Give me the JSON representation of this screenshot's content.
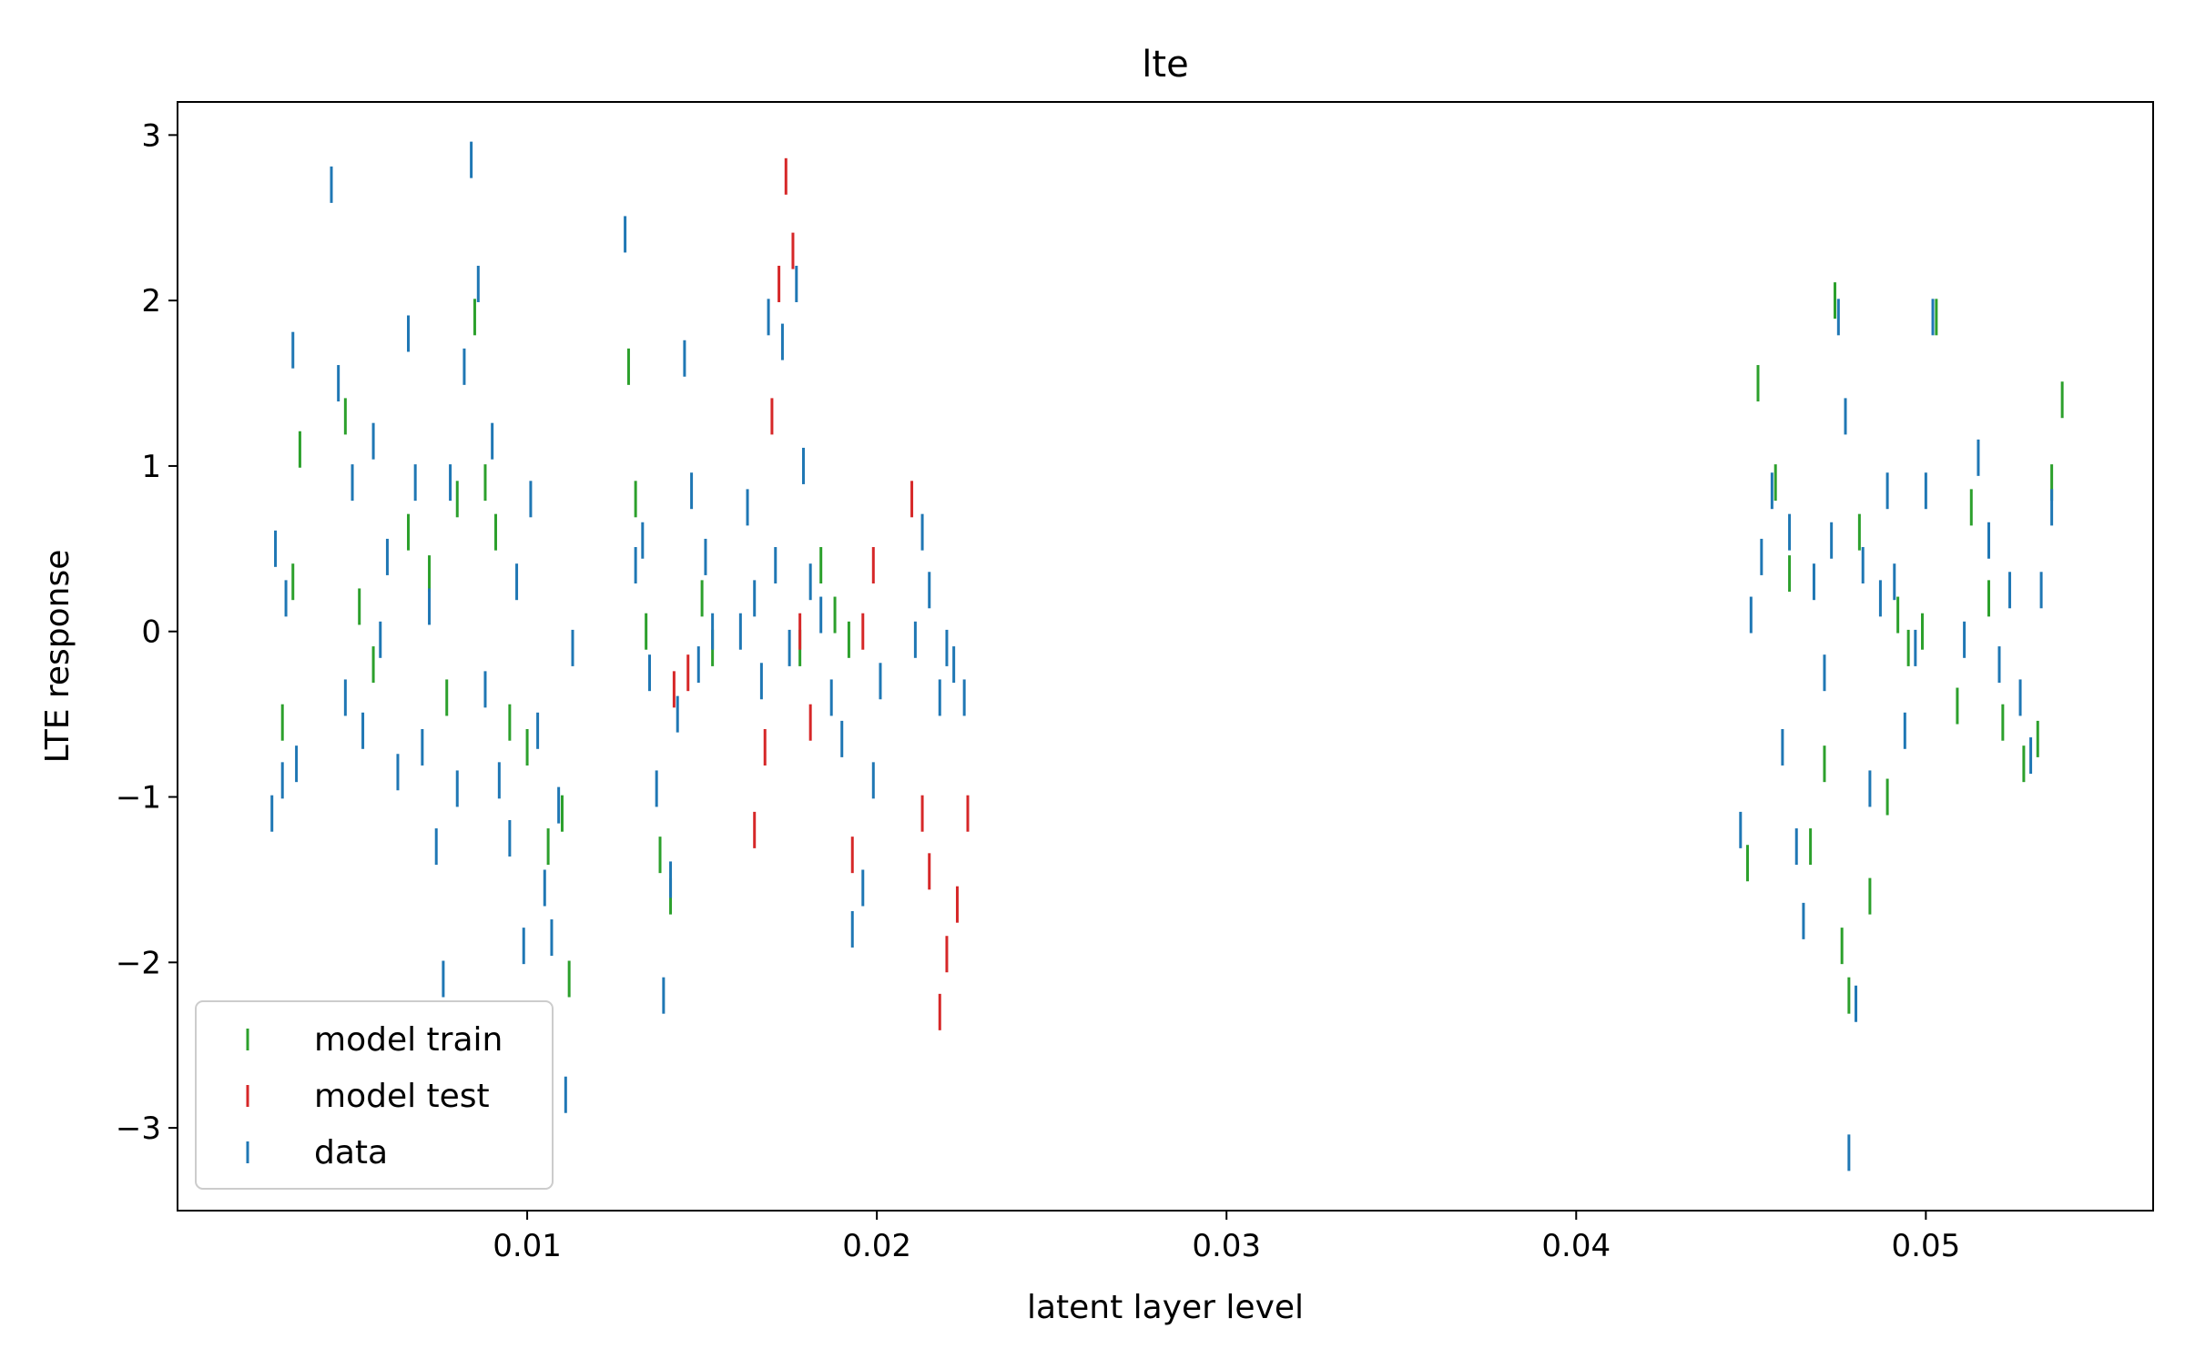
{
  "chart_data": {
    "type": "scatter",
    "title": "lte",
    "xlabel": "latent layer level",
    "ylabel": "LTE response",
    "xlim": [
      0.0,
      0.0565
    ],
    "ylim": [
      -3.5,
      3.2
    ],
    "x_ticks": [
      0.01,
      0.02,
      0.03,
      0.04,
      0.05
    ],
    "x_tick_labels": [
      "0.01",
      "0.02",
      "0.03",
      "0.04",
      "0.05"
    ],
    "y_ticks": [
      -3,
      -2,
      -1,
      0,
      1,
      2,
      3
    ],
    "y_tick_labels": [
      "−3",
      "−2",
      "−1",
      "0",
      "1",
      "2",
      "3"
    ],
    "marker": "vertical-line",
    "grid": false,
    "legend_position": "lower-left",
    "series": [
      {
        "name": "model train",
        "color": "#2ca02c",
        "points": [
          [
            0.003,
            -0.55
          ],
          [
            0.0033,
            0.3
          ],
          [
            0.0035,
            1.1
          ],
          [
            0.0048,
            1.3
          ],
          [
            0.0052,
            0.15
          ],
          [
            0.0056,
            -0.2
          ],
          [
            0.0066,
            0.6
          ],
          [
            0.0072,
            0.35
          ],
          [
            0.0077,
            -0.4
          ],
          [
            0.008,
            0.8
          ],
          [
            0.0085,
            1.9
          ],
          [
            0.0088,
            0.9
          ],
          [
            0.0091,
            0.6
          ],
          [
            0.0095,
            -0.55
          ],
          [
            0.01,
            -0.7
          ],
          [
            0.0106,
            -1.3
          ],
          [
            0.011,
            -1.1
          ],
          [
            0.0112,
            -2.1
          ],
          [
            0.0129,
            1.6
          ],
          [
            0.0131,
            0.8
          ],
          [
            0.0134,
            0.0
          ],
          [
            0.0138,
            -1.35
          ],
          [
            0.0141,
            -1.6
          ],
          [
            0.015,
            0.2
          ],
          [
            0.0153,
            -0.1
          ],
          [
            0.0178,
            -0.1
          ],
          [
            0.0184,
            0.4
          ],
          [
            0.0188,
            0.1
          ],
          [
            0.0192,
            -0.05
          ],
          [
            0.0449,
            -1.4
          ],
          [
            0.0452,
            1.5
          ],
          [
            0.0457,
            0.9
          ],
          [
            0.0461,
            0.35
          ],
          [
            0.0467,
            -1.3
          ],
          [
            0.0471,
            -0.8
          ],
          [
            0.0474,
            2.0
          ],
          [
            0.0476,
            -1.9
          ],
          [
            0.0478,
            -2.2
          ],
          [
            0.0481,
            0.6
          ],
          [
            0.0484,
            -1.6
          ],
          [
            0.0489,
            -1.0
          ],
          [
            0.0492,
            0.1
          ],
          [
            0.0495,
            -0.1
          ],
          [
            0.0499,
            0.0
          ],
          [
            0.0503,
            1.9
          ],
          [
            0.0509,
            -0.45
          ],
          [
            0.0513,
            0.75
          ],
          [
            0.0518,
            0.2
          ],
          [
            0.0522,
            -0.55
          ],
          [
            0.0528,
            -0.8
          ],
          [
            0.0532,
            -0.65
          ],
          [
            0.0536,
            0.9
          ],
          [
            0.0539,
            1.4
          ]
        ]
      },
      {
        "name": "model test",
        "color": "#d62728",
        "points": [
          [
            0.0142,
            -0.35
          ],
          [
            0.0146,
            -0.25
          ],
          [
            0.0165,
            -1.2
          ],
          [
            0.0168,
            -0.7
          ],
          [
            0.017,
            1.3
          ],
          [
            0.0172,
            2.1
          ],
          [
            0.0174,
            2.75
          ],
          [
            0.0176,
            2.3
          ],
          [
            0.0178,
            0.0
          ],
          [
            0.0181,
            -0.55
          ],
          [
            0.0193,
            -1.35
          ],
          [
            0.0196,
            0.0
          ],
          [
            0.0199,
            0.4
          ],
          [
            0.021,
            0.8
          ],
          [
            0.0213,
            -1.1
          ],
          [
            0.0215,
            -1.45
          ],
          [
            0.0218,
            -2.3
          ],
          [
            0.022,
            -1.95
          ],
          [
            0.0223,
            -1.65
          ],
          [
            0.0226,
            -1.1
          ]
        ]
      },
      {
        "name": "data",
        "color": "#1f77b4",
        "points": [
          [
            0.0027,
            -1.1
          ],
          [
            0.0028,
            0.5
          ],
          [
            0.003,
            -0.9
          ],
          [
            0.0031,
            0.2
          ],
          [
            0.0033,
            1.7
          ],
          [
            0.0034,
            -0.8
          ],
          [
            0.0044,
            2.7
          ],
          [
            0.0046,
            1.5
          ],
          [
            0.0048,
            -0.4
          ],
          [
            0.005,
            0.9
          ],
          [
            0.0053,
            -0.6
          ],
          [
            0.0056,
            1.15
          ],
          [
            0.0058,
            -0.05
          ],
          [
            0.006,
            0.45
          ],
          [
            0.0063,
            -0.85
          ],
          [
            0.0066,
            1.8
          ],
          [
            0.0068,
            0.9
          ],
          [
            0.007,
            -0.7
          ],
          [
            0.0072,
            0.15
          ],
          [
            0.0074,
            -1.3
          ],
          [
            0.0076,
            -2.1
          ],
          [
            0.0078,
            0.9
          ],
          [
            0.008,
            -0.95
          ],
          [
            0.0082,
            1.6
          ],
          [
            0.0084,
            2.85
          ],
          [
            0.0086,
            2.1
          ],
          [
            0.0088,
            -0.35
          ],
          [
            0.009,
            1.15
          ],
          [
            0.0092,
            -0.9
          ],
          [
            0.0095,
            -1.25
          ],
          [
            0.0097,
            0.3
          ],
          [
            0.0099,
            -1.9
          ],
          [
            0.0101,
            0.8
          ],
          [
            0.0103,
            -0.6
          ],
          [
            0.0105,
            -1.55
          ],
          [
            0.0107,
            -1.85
          ],
          [
            0.0109,
            -1.05
          ],
          [
            0.0111,
            -2.8
          ],
          [
            0.0113,
            -0.1
          ],
          [
            0.0128,
            2.4
          ],
          [
            0.0131,
            0.4
          ],
          [
            0.0133,
            0.55
          ],
          [
            0.0135,
            -0.25
          ],
          [
            0.0137,
            -0.95
          ],
          [
            0.0139,
            -2.2
          ],
          [
            0.0141,
            -1.5
          ],
          [
            0.0143,
            -0.5
          ],
          [
            0.0145,
            1.65
          ],
          [
            0.0147,
            0.85
          ],
          [
            0.0149,
            -0.2
          ],
          [
            0.0151,
            0.45
          ],
          [
            0.0153,
            0.0
          ],
          [
            0.0161,
            0.0
          ],
          [
            0.0163,
            0.75
          ],
          [
            0.0165,
            0.2
          ],
          [
            0.0167,
            -0.3
          ],
          [
            0.0169,
            1.9
          ],
          [
            0.0171,
            0.4
          ],
          [
            0.0173,
            1.75
          ],
          [
            0.0175,
            -0.1
          ],
          [
            0.0177,
            2.1
          ],
          [
            0.0179,
            1.0
          ],
          [
            0.0181,
            0.3
          ],
          [
            0.0184,
            0.1
          ],
          [
            0.0187,
            -0.4
          ],
          [
            0.019,
            -0.65
          ],
          [
            0.0193,
            -1.8
          ],
          [
            0.0196,
            -1.55
          ],
          [
            0.0199,
            -0.9
          ],
          [
            0.0201,
            -0.3
          ],
          [
            0.0211,
            -0.05
          ],
          [
            0.0213,
            0.6
          ],
          [
            0.0215,
            0.25
          ],
          [
            0.0218,
            -0.4
          ],
          [
            0.022,
            -0.1
          ],
          [
            0.0222,
            -0.2
          ],
          [
            0.0225,
            -0.4
          ],
          [
            0.0447,
            -1.2
          ],
          [
            0.045,
            0.1
          ],
          [
            0.0453,
            0.45
          ],
          [
            0.0456,
            0.85
          ],
          [
            0.0459,
            -0.7
          ],
          [
            0.0461,
            0.6
          ],
          [
            0.0463,
            -1.3
          ],
          [
            0.0465,
            -1.75
          ],
          [
            0.0468,
            0.3
          ],
          [
            0.0471,
            -0.25
          ],
          [
            0.0473,
            0.55
          ],
          [
            0.0475,
            1.9
          ],
          [
            0.0477,
            1.3
          ],
          [
            0.0478,
            -3.15
          ],
          [
            0.048,
            -2.25
          ],
          [
            0.0482,
            0.4
          ],
          [
            0.0484,
            -0.95
          ],
          [
            0.0487,
            0.2
          ],
          [
            0.0489,
            0.85
          ],
          [
            0.0491,
            0.3
          ],
          [
            0.0494,
            -0.6
          ],
          [
            0.0497,
            -0.1
          ],
          [
            0.05,
            0.85
          ],
          [
            0.0502,
            1.9
          ],
          [
            0.0511,
            -0.05
          ],
          [
            0.0515,
            1.05
          ],
          [
            0.0518,
            0.55
          ],
          [
            0.0521,
            -0.2
          ],
          [
            0.0524,
            0.25
          ],
          [
            0.0527,
            -0.4
          ],
          [
            0.053,
            -0.75
          ],
          [
            0.0533,
            0.25
          ],
          [
            0.0536,
            0.75
          ]
        ]
      }
    ],
    "legend": {
      "entries": [
        {
          "label": "model train",
          "color": "#2ca02c"
        },
        {
          "label": "model test",
          "color": "#d62728"
        },
        {
          "label": "data",
          "color": "#1f77b4"
        }
      ]
    }
  }
}
